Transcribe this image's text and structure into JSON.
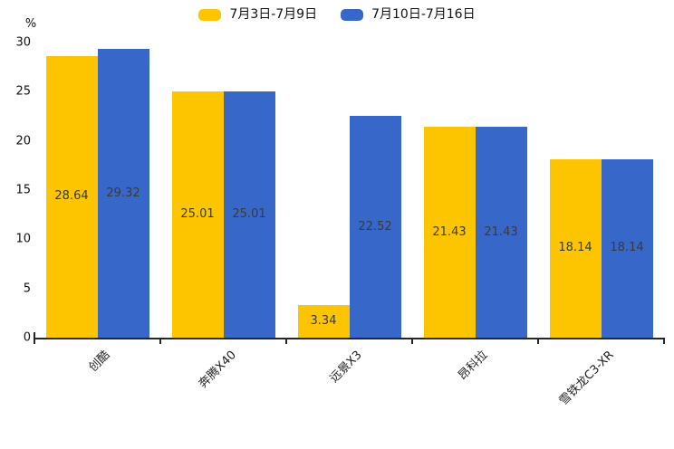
{
  "chart_data": {
    "type": "bar",
    "title": "",
    "categories": [
      "创酷",
      "奔腾X40",
      "远景X3",
      "昂科拉",
      "雪铁龙C3-XR"
    ],
    "series": [
      {
        "name": "7月3日-7月9日",
        "color": "#FDC500",
        "values": [
          28.64,
          25.01,
          3.34,
          21.43,
          18.14
        ]
      },
      {
        "name": "7月10日-7月16日",
        "color": "#3767C9",
        "values": [
          29.32,
          25.01,
          22.52,
          21.43,
          18.14
        ]
      }
    ],
    "xlabel": "",
    "ylabel": "%",
    "ylim": [
      0,
      30
    ],
    "yticks": [
      0,
      5,
      10,
      15,
      20,
      25,
      30
    ],
    "legend_position": "top-center",
    "grid": false,
    "value_labels": "centered-inside-bars",
    "background_color": "#FFFFFF",
    "axis_color": "#262626",
    "text_color": "#111111"
  }
}
